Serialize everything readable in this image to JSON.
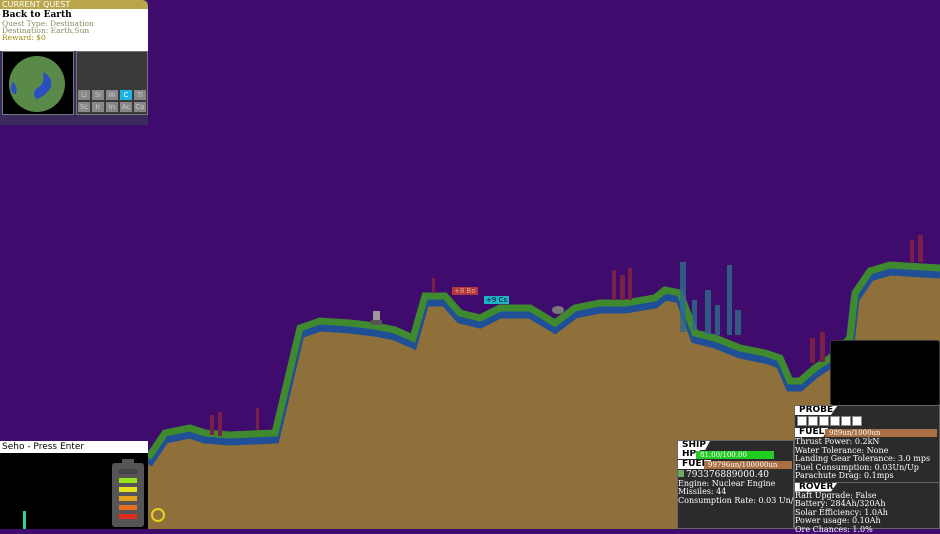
{
  "quest": {
    "header": "CURRENT QUEST",
    "title": "Back to Earth",
    "type": "Quest Type: Destination",
    "destination": "Destination: Earth,Sun",
    "reward": "Reward: $0"
  },
  "element_grid": [
    "Li",
    "Si",
    "W",
    "C",
    "Ti",
    "Sc",
    "Ir",
    "In",
    "Ac",
    "Co"
  ],
  "selected_element": "C",
  "prompt": "Seho - Press Enter",
  "battery_level": 0.83,
  "ore_labels": [
    {
      "text": "+8 Bo",
      "color": "#b03a3a"
    },
    {
      "text": "+9 Cs",
      "color": "#1fb3c4"
    }
  ],
  "ship": {
    "title": "SHIP",
    "hp_label": "HP",
    "hp": "81.00/100.00",
    "hp_fraction": 0.81,
    "fuel_label": "FUEL",
    "fuel": "99796un/100000un",
    "fuel_fraction": 0.998,
    "money": "793376889000.40",
    "engine": "Engine: Nuclear Engine",
    "missiles": "Missiles: 44",
    "consumption": "Consumption Rate: 0.03 Un/Up"
  },
  "probe": {
    "title": "PROBE",
    "probe_count": 6,
    "fuel_label": "FUEL",
    "fuel": "989un/1000un",
    "fuel_fraction": 0.989,
    "stats": [
      "Thrust Power: 0.2kN",
      "Water Tolerance: None",
      "Landing Gear Tolerance: 3.0 mps",
      "Fuel Consumption: 0.03Un/Up",
      "Parachute Drag: 0.1mps"
    ]
  },
  "rover": {
    "title": "ROVER",
    "stats": [
      "Raft Upgrade: False",
      "Battery: 284Ah/320Ah",
      "Solar Efficiency: 1.0Ah",
      "Power usage: 0.10Ah",
      "Ore Chances: 1.0%"
    ]
  },
  "colors": {
    "sky": "#3f0c6e",
    "ground": "#8f6f3a",
    "grass": "#3f8a2e",
    "water": "#1f4f96",
    "hp": "#22cc22",
    "fuel": "#a86e44"
  }
}
